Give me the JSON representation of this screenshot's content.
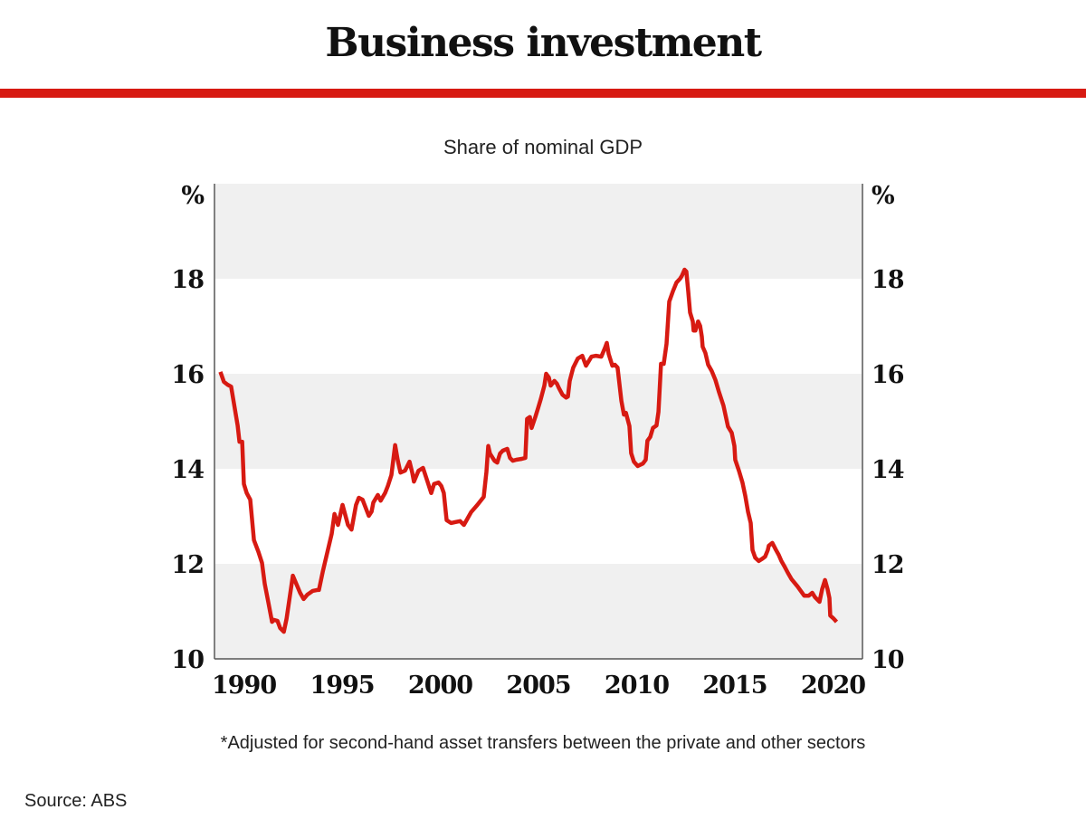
{
  "header": {
    "title": "Business investment",
    "subtitle": "Share of nominal GDP"
  },
  "footer": {
    "note": "*Adjusted for second-hand asset transfers between the private and other sectors",
    "source": "Source: ABS"
  },
  "colors": {
    "accent": "#d71a12",
    "band": "#f0f0f0",
    "axis": "#808080",
    "text": "#111111"
  },
  "chart_data": {
    "type": "line",
    "title": "Business investment",
    "subtitle": "Share of nominal GDP",
    "xlabel": "",
    "ylabel": "%",
    "y_unit_label_left": "%",
    "y_unit_label_right": "%",
    "xlim": [
      1988.5,
      2021.5
    ],
    "ylim": [
      10,
      20
    ],
    "x_ticks": [
      1990,
      1995,
      2000,
      2005,
      2010,
      2015,
      2020
    ],
    "x_tick_labels": [
      "1990",
      "1995",
      "2000",
      "2005",
      "2010",
      "2015",
      "2020"
    ],
    "y_ticks": [
      10,
      12,
      14,
      16,
      18
    ],
    "y_tick_labels": [
      "10",
      "12",
      "14",
      "16",
      "18"
    ],
    "shaded_bands": [
      [
        10,
        12
      ],
      [
        14,
        16
      ],
      [
        18,
        20
      ]
    ],
    "grid": false,
    "legend": "none",
    "series": [
      {
        "name": "Business investment share of nominal GDP",
        "color": "#d71a12",
        "points": [
          [
            1988.8,
            16.04
          ],
          [
            1988.98,
            15.83
          ],
          [
            1989.17,
            15.77
          ],
          [
            1989.35,
            15.73
          ],
          [
            1989.68,
            14.91
          ],
          [
            1989.77,
            14.57
          ],
          [
            1989.91,
            14.57
          ],
          [
            1990.0,
            13.68
          ],
          [
            1990.14,
            13.49
          ],
          [
            1990.32,
            13.35
          ],
          [
            1990.51,
            12.5
          ],
          [
            1990.74,
            12.25
          ],
          [
            1990.92,
            12.02
          ],
          [
            1991.06,
            11.58
          ],
          [
            1991.24,
            11.2
          ],
          [
            1991.43,
            10.78
          ],
          [
            1991.52,
            10.82
          ],
          [
            1991.71,
            10.8
          ],
          [
            1991.84,
            10.65
          ],
          [
            1992.03,
            10.57
          ],
          [
            1992.17,
            10.84
          ],
          [
            1992.49,
            11.75
          ],
          [
            1992.86,
            11.39
          ],
          [
            1993.04,
            11.26
          ],
          [
            1993.23,
            11.35
          ],
          [
            1993.5,
            11.43
          ],
          [
            1993.73,
            11.45
          ],
          [
            1993.82,
            11.45
          ],
          [
            1994.01,
            11.83
          ],
          [
            1994.47,
            12.63
          ],
          [
            1994.61,
            13.05
          ],
          [
            1994.79,
            12.82
          ],
          [
            1995.02,
            13.24
          ],
          [
            1995.3,
            12.82
          ],
          [
            1995.48,
            12.72
          ],
          [
            1995.71,
            13.24
          ],
          [
            1995.85,
            13.39
          ],
          [
            1996.04,
            13.35
          ],
          [
            1996.36,
            13.01
          ],
          [
            1996.5,
            13.1
          ],
          [
            1996.59,
            13.29
          ],
          [
            1996.82,
            13.45
          ],
          [
            1996.96,
            13.33
          ],
          [
            1997.19,
            13.49
          ],
          [
            1997.33,
            13.64
          ],
          [
            1997.51,
            13.87
          ],
          [
            1997.7,
            14.5
          ],
          [
            1997.83,
            14.19
          ],
          [
            1997.97,
            13.92
          ],
          [
            1998.2,
            13.96
          ],
          [
            1998.43,
            14.15
          ],
          [
            1998.57,
            13.92
          ],
          [
            1998.66,
            13.73
          ],
          [
            1998.89,
            13.96
          ],
          [
            1999.12,
            14.02
          ],
          [
            1999.35,
            13.73
          ],
          [
            1999.54,
            13.49
          ],
          [
            1999.68,
            13.68
          ],
          [
            1999.91,
            13.71
          ],
          [
            2000.05,
            13.64
          ],
          [
            2000.18,
            13.49
          ],
          [
            2000.32,
            12.92
          ],
          [
            2000.55,
            12.86
          ],
          [
            2000.78,
            12.88
          ],
          [
            2001.01,
            12.9
          ],
          [
            2001.2,
            12.82
          ],
          [
            2001.38,
            12.95
          ],
          [
            2001.57,
            13.09
          ],
          [
            2001.89,
            13.24
          ],
          [
            2002.21,
            13.41
          ],
          [
            2002.35,
            13.94
          ],
          [
            2002.44,
            14.48
          ],
          [
            2002.53,
            14.32
          ],
          [
            2002.76,
            14.17
          ],
          [
            2002.9,
            14.13
          ],
          [
            2003.04,
            14.32
          ],
          [
            2003.18,
            14.38
          ],
          [
            2003.41,
            14.42
          ],
          [
            2003.55,
            14.23
          ],
          [
            2003.69,
            14.17
          ],
          [
            2003.87,
            14.19
          ],
          [
            2004.15,
            14.21
          ],
          [
            2004.33,
            14.23
          ],
          [
            2004.42,
            15.05
          ],
          [
            2004.56,
            15.09
          ],
          [
            2004.65,
            14.86
          ],
          [
            2004.84,
            15.09
          ],
          [
            2004.98,
            15.28
          ],
          [
            2005.12,
            15.47
          ],
          [
            2005.3,
            15.75
          ],
          [
            2005.39,
            16.0
          ],
          [
            2005.53,
            15.92
          ],
          [
            2005.62,
            15.75
          ],
          [
            2005.81,
            15.85
          ],
          [
            2005.94,
            15.79
          ],
          [
            2006.04,
            15.7
          ],
          [
            2006.22,
            15.56
          ],
          [
            2006.41,
            15.5
          ],
          [
            2006.5,
            15.52
          ],
          [
            2006.59,
            15.85
          ],
          [
            2006.77,
            16.13
          ],
          [
            2007.0,
            16.32
          ],
          [
            2007.23,
            16.38
          ],
          [
            2007.42,
            16.17
          ],
          [
            2007.7,
            16.36
          ],
          [
            2007.93,
            16.38
          ],
          [
            2008.2,
            16.36
          ],
          [
            2008.39,
            16.55
          ],
          [
            2008.48,
            16.65
          ],
          [
            2008.57,
            16.42
          ],
          [
            2008.76,
            16.17
          ],
          [
            2008.89,
            16.19
          ],
          [
            2009.03,
            16.13
          ],
          [
            2009.22,
            15.43
          ],
          [
            2009.35,
            15.14
          ],
          [
            2009.45,
            15.18
          ],
          [
            2009.63,
            14.9
          ],
          [
            2009.72,
            14.33
          ],
          [
            2009.86,
            14.15
          ],
          [
            2010.05,
            14.06
          ],
          [
            2010.32,
            14.11
          ],
          [
            2010.46,
            14.19
          ],
          [
            2010.55,
            14.59
          ],
          [
            2010.69,
            14.67
          ],
          [
            2010.83,
            14.86
          ],
          [
            2011.01,
            14.91
          ],
          [
            2011.11,
            15.2
          ],
          [
            2011.24,
            16.21
          ],
          [
            2011.38,
            16.21
          ],
          [
            2011.52,
            16.63
          ],
          [
            2011.66,
            17.52
          ],
          [
            2011.84,
            17.73
          ],
          [
            2012.03,
            17.92
          ],
          [
            2012.21,
            18.0
          ],
          [
            2012.3,
            18.06
          ],
          [
            2012.44,
            18.19
          ],
          [
            2012.53,
            18.15
          ],
          [
            2012.63,
            17.73
          ],
          [
            2012.72,
            17.29
          ],
          [
            2012.86,
            17.1
          ],
          [
            2012.9,
            16.91
          ],
          [
            2012.99,
            16.91
          ],
          [
            2013.13,
            17.1
          ],
          [
            2013.23,
            17.01
          ],
          [
            2013.32,
            16.78
          ],
          [
            2013.36,
            16.57
          ],
          [
            2013.5,
            16.44
          ],
          [
            2013.64,
            16.19
          ],
          [
            2013.82,
            16.06
          ],
          [
            2014.01,
            15.87
          ],
          [
            2014.19,
            15.62
          ],
          [
            2014.42,
            15.33
          ],
          [
            2014.65,
            14.89
          ],
          [
            2014.84,
            14.76
          ],
          [
            2014.98,
            14.48
          ],
          [
            2015.02,
            14.19
          ],
          [
            2015.21,
            13.96
          ],
          [
            2015.39,
            13.71
          ],
          [
            2015.53,
            13.43
          ],
          [
            2015.67,
            13.1
          ],
          [
            2015.81,
            12.86
          ],
          [
            2015.9,
            12.29
          ],
          [
            2016.04,
            12.13
          ],
          [
            2016.22,
            12.06
          ],
          [
            2016.41,
            12.11
          ],
          [
            2016.54,
            12.15
          ],
          [
            2016.68,
            12.29
          ],
          [
            2016.73,
            12.38
          ],
          [
            2016.91,
            12.44
          ],
          [
            2017.1,
            12.29
          ],
          [
            2017.23,
            12.19
          ],
          [
            2017.37,
            12.06
          ],
          [
            2017.51,
            11.96
          ],
          [
            2017.7,
            11.81
          ],
          [
            2017.88,
            11.68
          ],
          [
            2018.2,
            11.52
          ],
          [
            2018.53,
            11.33
          ],
          [
            2018.76,
            11.33
          ],
          [
            2018.94,
            11.39
          ],
          [
            2019.08,
            11.3
          ],
          [
            2019.31,
            11.2
          ],
          [
            2019.45,
            11.47
          ],
          [
            2019.59,
            11.66
          ],
          [
            2019.72,
            11.47
          ],
          [
            2019.82,
            11.28
          ],
          [
            2019.86,
            10.91
          ],
          [
            2020.0,
            10.86
          ],
          [
            2020.18,
            10.78
          ]
        ]
      }
    ]
  }
}
